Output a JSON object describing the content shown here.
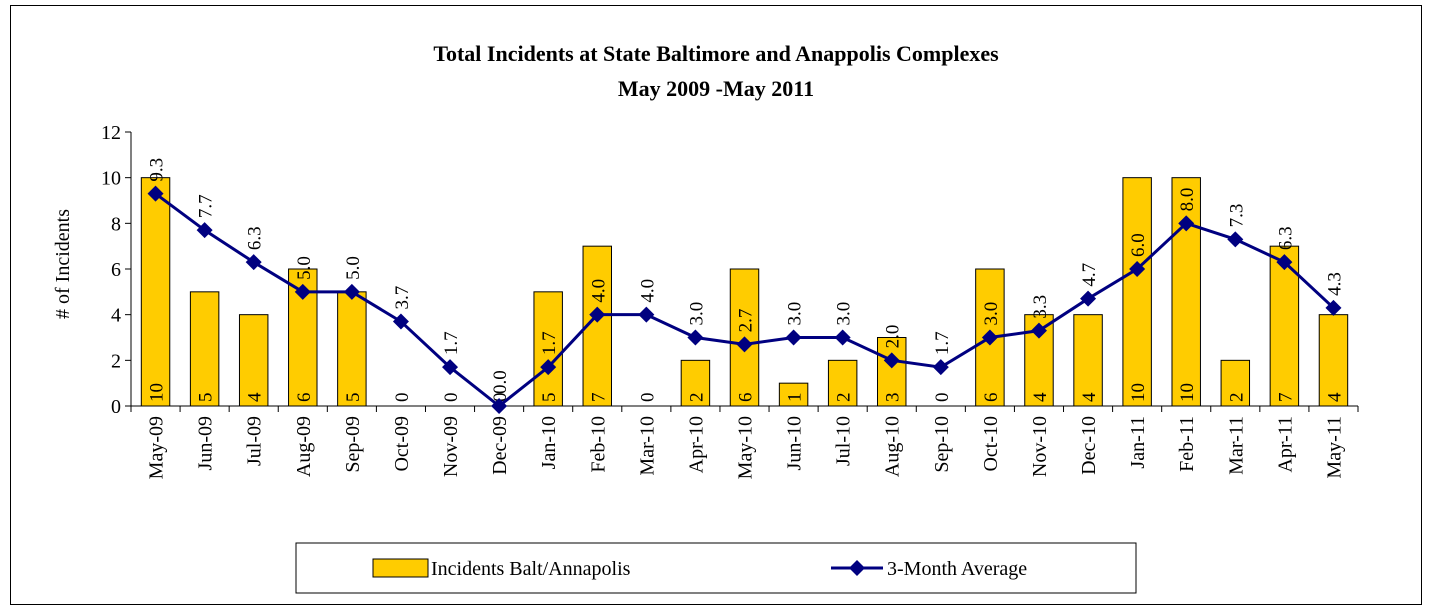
{
  "chart_data": {
    "type": "bar",
    "title": "Total Incidents at State Baltimore and Anappolis Complexes",
    "subtitle": "May 2009 -May 2011",
    "xlabel": "",
    "ylabel": "# of Incidents",
    "ylim": [
      0,
      12
    ],
    "yticks": [
      0,
      2,
      4,
      6,
      8,
      10,
      12
    ],
    "grid": false,
    "legend_position": "bottom",
    "categories": [
      "May-09",
      "Jun-09",
      "Jul-09",
      "Aug-09",
      "Sep-09",
      "Oct-09",
      "Nov-09",
      "Dec-09",
      "Jan-10",
      "Feb-10",
      "Mar-10",
      "Apr-10",
      "May-10",
      "Jun-10",
      "Jul-10",
      "Aug-10",
      "Sep-10",
      "Oct-10",
      "Nov-10",
      "Dec-10",
      "Jan-11",
      "Feb-11",
      "Mar-11",
      "Apr-11",
      "May-11"
    ],
    "series": [
      {
        "name": "Incidents Balt/Annapolis",
        "type": "bar",
        "color": "#FFCC00",
        "values": [
          10,
          5,
          4,
          6,
          5,
          0,
          0,
          0,
          5,
          7,
          0,
          2,
          6,
          1,
          2,
          3,
          0,
          6,
          4,
          4,
          10,
          10,
          2,
          7,
          4
        ],
        "labels": [
          "10",
          "5",
          "4",
          "6",
          "5",
          "0",
          "0",
          "0",
          "5",
          "7",
          "0",
          "2",
          "6",
          "1",
          "2",
          "3",
          "0",
          "6",
          "4",
          "4",
          "10",
          "10",
          "2",
          "7",
          "4"
        ]
      },
      {
        "name": "3-Month Average",
        "type": "line",
        "color": "#000080",
        "marker": "diamond",
        "values": [
          9.3,
          7.7,
          6.3,
          5.0,
          5.0,
          3.7,
          1.7,
          0.0,
          1.7,
          4.0,
          4.0,
          3.0,
          2.7,
          3.0,
          3.0,
          2.0,
          1.7,
          3.0,
          3.3,
          4.7,
          6.0,
          8.0,
          7.3,
          6.3,
          4.3
        ],
        "labels": [
          "9.3",
          "7.7",
          "6.3",
          "5.0",
          "5.0",
          "3.7",
          "1.7",
          "0.0",
          "1.7",
          "4.0",
          "4.0",
          "3.0",
          "2.7",
          "3.0",
          "3.0",
          "2.0",
          "1.7",
          "3.0",
          "3.3",
          "4.7",
          "6.0",
          "8.0",
          "7.3",
          "6.3",
          "4.3"
        ]
      }
    ]
  }
}
